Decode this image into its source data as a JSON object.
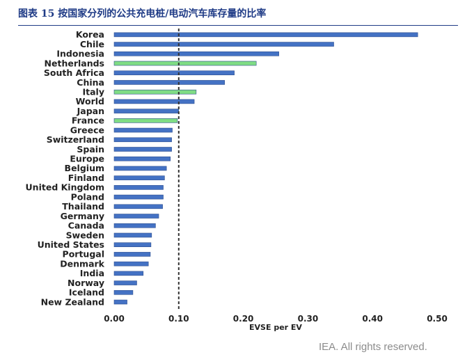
{
  "figure_title": "图表 15 按国家分列的公共充电桩/电动汽车库存量的比率",
  "credit": "IEA. All rights reserved.",
  "colors": {
    "default_bar": "#4472c4",
    "highlight_bar": "#7fdc84",
    "title": "#1f3b86"
  },
  "chart_data": {
    "type": "bar",
    "orientation": "horizontal",
    "xlabel": "EVSE per EV",
    "xlim": [
      0,
      0.5
    ],
    "xticks": [
      "0.00",
      "0.10",
      "0.20",
      "0.30",
      "0.40",
      "0.50"
    ],
    "reference_line": 0.1,
    "grid": false,
    "legend": "none",
    "categories": [
      "Korea",
      "Chile",
      "Indonesia",
      "Netherlands",
      "South Africa",
      "China",
      "Italy",
      "World",
      "Japan",
      "France",
      "Greece",
      "Switzerland",
      "Spain",
      "Europe",
      "Belgium",
      "Finland",
      "United Kingdom",
      "Poland",
      "Thailand",
      "Germany",
      "Canada",
      "Sweden",
      "United States",
      "Portugal",
      "Denmark",
      "India",
      "Norway",
      "Iceland",
      "New Zealand"
    ],
    "values": [
      0.47,
      0.34,
      0.255,
      0.22,
      0.186,
      0.171,
      0.127,
      0.124,
      0.1,
      0.098,
      0.09,
      0.089,
      0.089,
      0.087,
      0.081,
      0.078,
      0.076,
      0.076,
      0.075,
      0.069,
      0.064,
      0.058,
      0.057,
      0.056,
      0.053,
      0.045,
      0.035,
      0.029,
      0.02
    ],
    "highlighted": [
      "Netherlands",
      "Italy",
      "France"
    ]
  }
}
